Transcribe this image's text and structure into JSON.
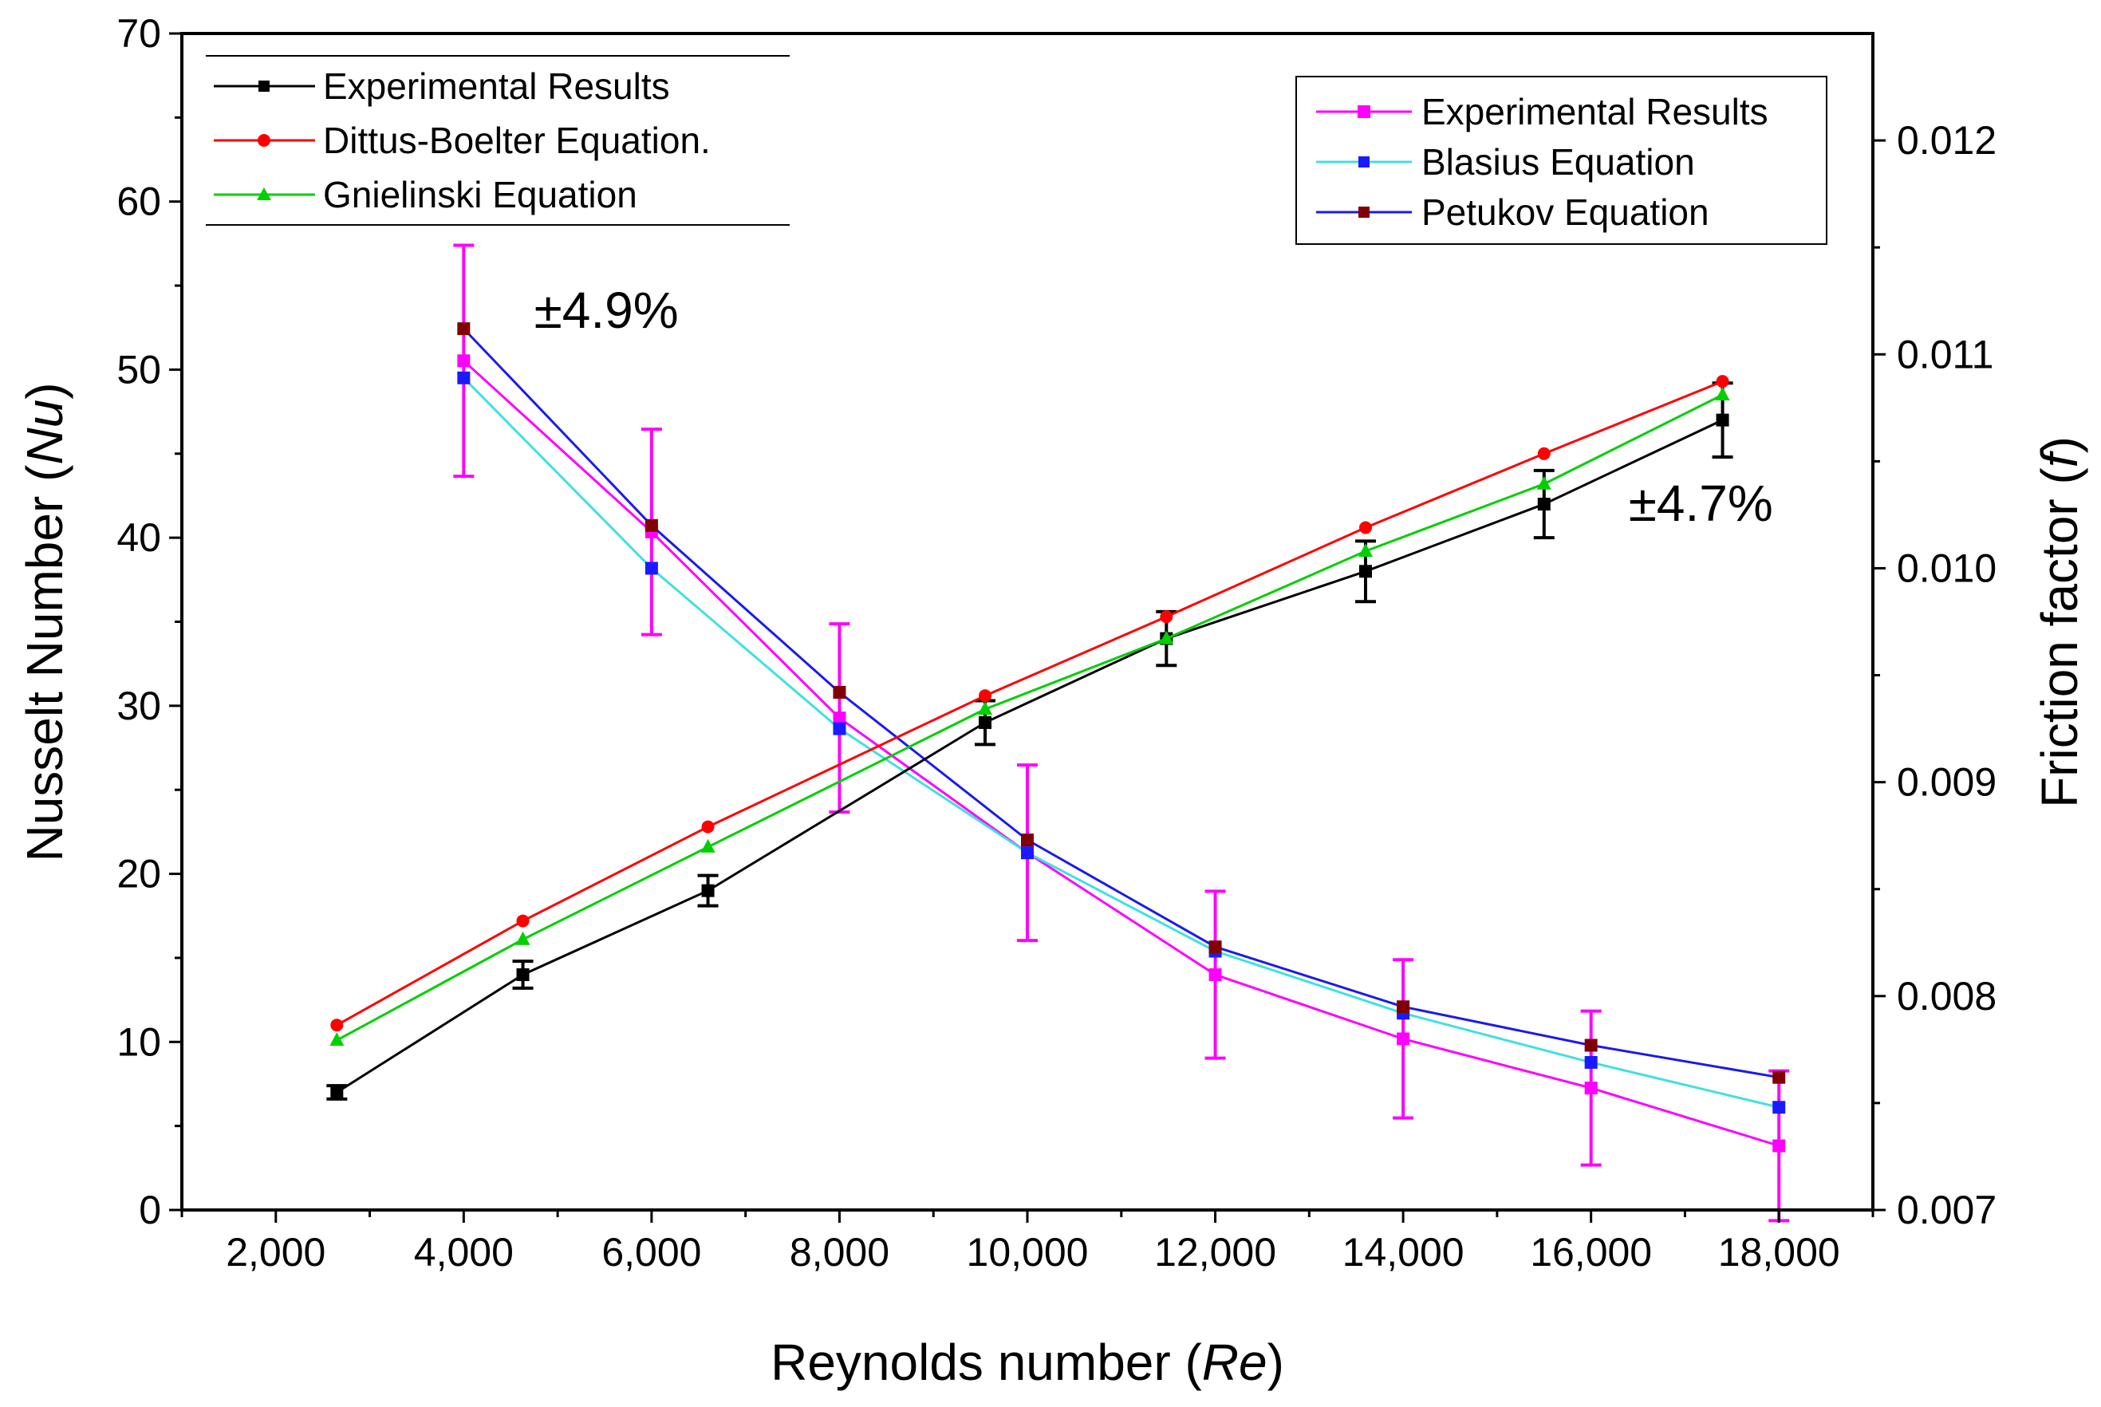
{
  "chart_data": {
    "type": "line",
    "xlabel": {
      "prefix": "Reynolds number (",
      "var": "Re",
      "suffix": ")"
    },
    "ylabel_left": {
      "prefix": "Nusselt Number (",
      "var": "Nu",
      "suffix": ")"
    },
    "ylabel_right": {
      "prefix": "Friction factor (",
      "var": "f",
      "suffix": ")"
    },
    "xlim": [
      1000,
      19000
    ],
    "ylim_left": [
      0,
      70
    ],
    "ylim_right": [
      0.007,
      0.0125
    ],
    "x_ticks": [
      2000,
      4000,
      6000,
      8000,
      10000,
      12000,
      14000,
      16000,
      18000
    ],
    "x_tick_labels": [
      "2,000",
      "4,000",
      "6,000",
      "8,000",
      "10,000",
      "12,000",
      "14,000",
      "16,000",
      "18,000"
    ],
    "y_ticks_left": [
      0,
      10,
      20,
      30,
      40,
      50,
      60,
      70
    ],
    "y_tick_labels_left": [
      "0",
      "10",
      "20",
      "30",
      "40",
      "50",
      "60",
      "70"
    ],
    "y_ticks_right": [
      0.007,
      0.008,
      0.009,
      0.01,
      0.011,
      0.012
    ],
    "y_tick_labels_right": [
      "0.007",
      "0.008",
      "0.009",
      "0.010",
      "0.011",
      "0.012"
    ],
    "series_left": [
      {
        "name": "Experimental Results",
        "color": "#000000",
        "marker": "square",
        "x": [
          2650,
          4630,
          6600,
          9550,
          11480,
          13600,
          15500,
          17400
        ],
        "y": [
          7.0,
          14.0,
          19.0,
          29.0,
          34.0,
          38.0,
          42.0,
          47.0
        ],
        "err": [
          0.4,
          0.8,
          0.9,
          1.3,
          1.6,
          1.8,
          2.0,
          2.2
        ]
      },
      {
        "name": "Dittus-Boelter Equation.",
        "color": "#ff0000",
        "marker": "circle",
        "x": [
          2650,
          4630,
          6600,
          9550,
          11480,
          13600,
          15500,
          17400
        ],
        "y": [
          11.0,
          17.2,
          22.8,
          30.6,
          35.3,
          40.6,
          45.0,
          49.3
        ]
      },
      {
        "name": "Gnielinski Equation",
        "color": "#00d000",
        "marker": "triangle",
        "x": [
          2650,
          4630,
          6600,
          9550,
          11480,
          13600,
          15500,
          17400
        ],
        "y": [
          10.1,
          16.1,
          21.6,
          29.8,
          34.0,
          39.2,
          43.2,
          48.5
        ]
      }
    ],
    "series_right": [
      {
        "name": "Experimental Results",
        "color": "#ff00ff",
        "marker": "square",
        "x": [
          4000,
          6000,
          8000,
          10000,
          12000,
          14000,
          16000,
          18000
        ],
        "y": [
          0.01097,
          0.01017,
          0.0093,
          0.00867,
          0.0081,
          0.0078,
          0.00757,
          0.0073
        ],
        "err": [
          0.00054,
          0.00048,
          0.00044,
          0.00041,
          0.00039,
          0.00037,
          0.00036,
          0.00035
        ]
      },
      {
        "name": "Blasius Equation",
        "color": "#40e0e0",
        "marker": "square",
        "marker_color": "#1a1aff",
        "x": [
          4000,
          6000,
          8000,
          10000,
          12000,
          14000,
          16000,
          18000
        ],
        "y": [
          0.01089,
          0.01,
          0.00925,
          0.00867,
          0.00821,
          0.00792,
          0.00769,
          0.00748
        ]
      },
      {
        "name": "Petukov Equation",
        "color": "#1a1aee",
        "marker": "square",
        "marker_color": "#800000",
        "x": [
          4000,
          6000,
          8000,
          10000,
          12000,
          14000,
          16000,
          18000
        ],
        "y": [
          0.01112,
          0.0102,
          0.00942,
          0.00873,
          0.00823,
          0.00795,
          0.00777,
          0.00762
        ]
      }
    ],
    "annotations": [
      {
        "text": "±4.9%",
        "x": 4750,
        "y_left": 52.5
      },
      {
        "text": "±4.7%",
        "x": 16400,
        "y_left": 41.0
      }
    ],
    "legend_left_position": "top-left",
    "legend_right_position": "top-right",
    "grid": false
  }
}
